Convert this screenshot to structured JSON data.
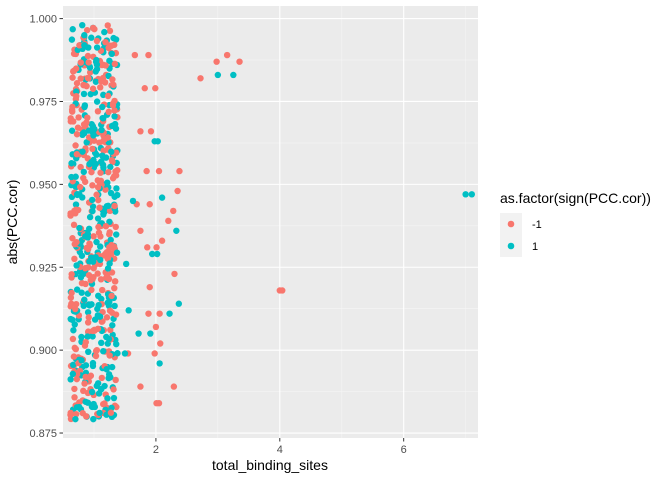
{
  "chart_data": {
    "type": "scatter",
    "title": "",
    "xlabel": "total_binding_sites",
    "ylabel": "abs(PCC.cor)",
    "xlim": [
      0.5,
      7.2
    ],
    "ylim": [
      0.8735,
      1.0038
    ],
    "x_ticks": [
      2,
      4,
      6
    ],
    "x_tick_labels": [
      "2",
      "4",
      "6"
    ],
    "y_ticks": [
      0.875,
      0.9,
      0.925,
      0.95,
      0.975,
      1.0
    ],
    "y_tick_labels": [
      "0.875",
      "0.900",
      "0.925",
      "0.950",
      "0.975",
      "1.000"
    ],
    "grid": true,
    "legend": {
      "title": "as.factor(sign(PCC.cor))",
      "position": "right",
      "entries": [
        {
          "label": "-1",
          "color": "#F8766D"
        },
        {
          "label": "1",
          "color": "#00BFC4"
        }
      ]
    },
    "series": [
      {
        "name": "-1",
        "color": "#F8766D",
        "points": [
          [
            2.72,
            0.982
          ],
          [
            2.98,
            0.987
          ],
          [
            3.35,
            0.987
          ],
          [
            3.15,
            0.989
          ],
          [
            1.66,
            0.989
          ],
          [
            1.88,
            0.989
          ],
          [
            1.82,
            0.979
          ],
          [
            1.99,
            0.979
          ],
          [
            1.75,
            0.966
          ],
          [
            1.92,
            0.966
          ],
          [
            1.85,
            0.954
          ],
          [
            2.05,
            0.954
          ],
          [
            2.35,
            0.948
          ],
          [
            2.38,
            0.954
          ],
          [
            1.69,
            0.944
          ],
          [
            1.9,
            0.944
          ],
          [
            2.28,
            0.942
          ],
          [
            2.1,
            0.933
          ],
          [
            1.86,
            0.931
          ],
          [
            2.01,
            0.931
          ],
          [
            2.2,
            0.939
          ],
          [
            2.3,
            0.923
          ],
          [
            1.9,
            0.919
          ],
          [
            1.88,
            0.911
          ],
          [
            2.06,
            0.911
          ],
          [
            2.0,
            0.907
          ],
          [
            1.98,
            0.899
          ],
          [
            2.07,
            0.902
          ],
          [
            1.75,
            0.889
          ],
          [
            2.29,
            0.889
          ],
          [
            2.01,
            0.884
          ],
          [
            2.05,
            0.884
          ],
          [
            4.0,
            0.918
          ],
          [
            4.04,
            0.918
          ],
          [
            1.55,
            0.899
          ],
          [
            1.75,
            0.936
          ]
        ]
      },
      {
        "name": "1",
        "color": "#00BFC4",
        "points": [
          [
            7.0,
            0.947
          ],
          [
            7.1,
            0.947
          ],
          [
            3.0,
            0.983
          ],
          [
            3.25,
            0.983
          ],
          [
            1.98,
            0.963
          ],
          [
            2.03,
            0.963
          ],
          [
            1.63,
            0.945
          ],
          [
            2.33,
            0.936
          ],
          [
            1.94,
            0.929
          ],
          [
            2.02,
            0.929
          ],
          [
            2.37,
            0.914
          ],
          [
            2.22,
            0.911
          ],
          [
            1.72,
            0.905
          ],
          [
            1.91,
            0.905
          ],
          [
            2.06,
            0.896
          ],
          [
            1.5,
            0.899
          ],
          [
            1.56,
            0.912
          ],
          [
            1.52,
            0.926
          ],
          [
            2.1,
            0.946
          ]
        ]
      }
    ],
    "cloud_note_points": []
  }
}
